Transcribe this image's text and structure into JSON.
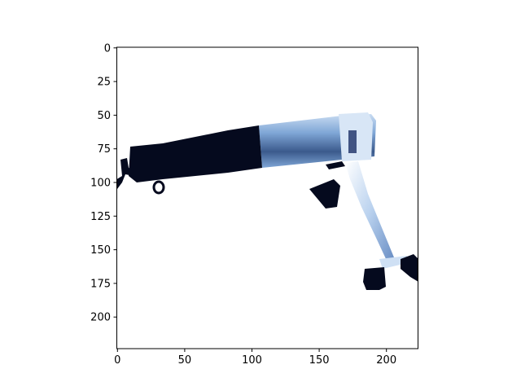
{
  "image": {
    "subject": "tool-photo",
    "colors": {
      "handle": "#050a1e",
      "barrel_dark": "#3b5a8c",
      "barrel_mid": "#7fa6d6",
      "barrel_light": "#c9dcf2",
      "stand": "#b7d0ee",
      "background": "#ffffff"
    }
  },
  "axes": {
    "x_ticks": [
      "0",
      "50",
      "100",
      "150",
      "200"
    ],
    "y_ticks": [
      "0",
      "25",
      "50",
      "75",
      "100",
      "125",
      "150",
      "175",
      "200"
    ],
    "xlim": [
      0,
      224
    ],
    "ylim": [
      224,
      0
    ]
  }
}
